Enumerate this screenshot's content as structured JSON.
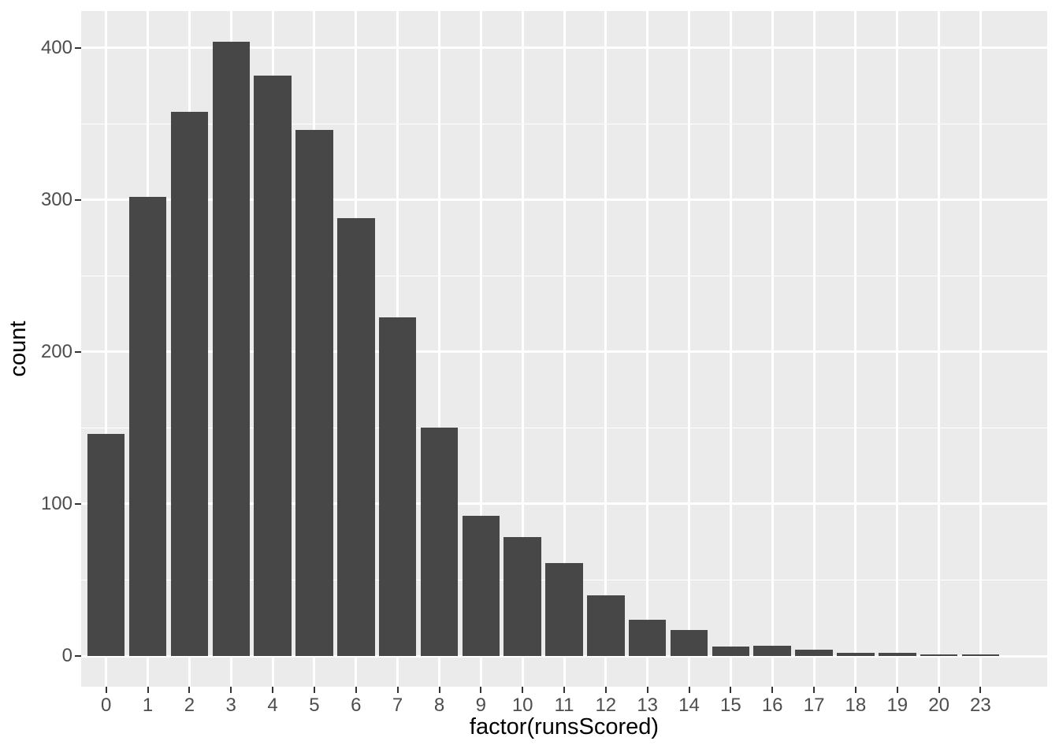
{
  "chart_data": {
    "type": "bar",
    "title": "",
    "xlabel": "factor(runsScored)",
    "ylabel": "count",
    "categories": [
      "0",
      "1",
      "2",
      "3",
      "4",
      "5",
      "6",
      "7",
      "8",
      "9",
      "10",
      "11",
      "12",
      "13",
      "14",
      "15",
      "16",
      "17",
      "18",
      "19",
      "20",
      "23"
    ],
    "values": [
      146,
      302,
      358,
      404,
      382,
      346,
      288,
      223,
      150,
      92,
      78,
      61,
      40,
      24,
      17,
      6,
      7,
      4,
      2,
      2,
      1,
      1
    ],
    "y_tick_values": [
      0,
      100,
      200,
      300,
      400
    ],
    "y_tick_labels": [
      "0",
      "100",
      "200",
      "300",
      "400"
    ],
    "y_minor_values": [
      50,
      150,
      250,
      350
    ],
    "ylim": [
      -20.2,
      424.2
    ],
    "bar_width_fraction": 0.9,
    "x_expand_additive": 0.6,
    "grid": "on",
    "legend": "none",
    "colors": {
      "bar_fill": "#474747",
      "panel_background": "#EBEBEB",
      "gridline": "#FFFFFF",
      "tick_mark": "#333333",
      "tick_label": "#4D4D4D",
      "axis_title": "#000000",
      "page_background": "#FFFFFF"
    }
  }
}
